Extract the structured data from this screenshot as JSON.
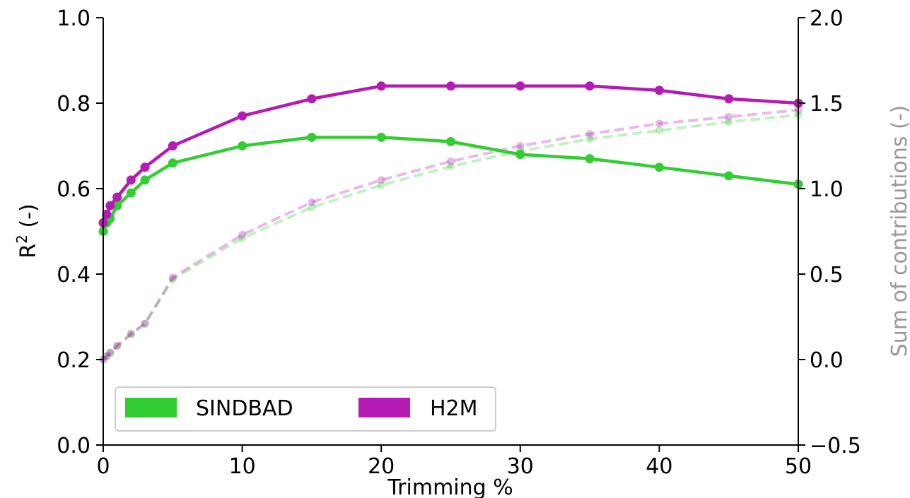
{
  "chart_data": {
    "type": "line",
    "xlabel": "Trimming %",
    "ylabel_left": "R",
    "ylabel_left_sup": "2",
    "ylabel_left_suffix": " (-)",
    "ylabel_right": "Sum of contributions (-)",
    "xlim": [
      0,
      50
    ],
    "ylim_left": [
      0,
      1
    ],
    "ylim_right": [
      -0.5,
      2.0
    ],
    "x_ticks": [
      "0",
      "10",
      "20",
      "30",
      "40",
      "50"
    ],
    "y_left_ticks": [
      "0.0",
      "0.2",
      "0.4",
      "0.6",
      "0.8",
      "1.0"
    ],
    "y_right_ticks": [
      "−0.5",
      "0.0",
      "0.5",
      "1.0",
      "1.5",
      "2.0"
    ],
    "grid": false,
    "legend_position": "bottom-left",
    "x": [
      0,
      0.25,
      0.5,
      1,
      2,
      3,
      5,
      10,
      15,
      20,
      25,
      30,
      35,
      40,
      45,
      50
    ],
    "series": [
      {
        "name": "SINDBAD",
        "color": "#32cd32",
        "axis": "left",
        "style": "solid",
        "values": [
          0.5,
          0.52,
          0.53,
          0.56,
          0.59,
          0.62,
          0.66,
          0.7,
          0.72,
          0.72,
          0.71,
          0.68,
          0.67,
          0.65,
          0.63,
          0.61
        ]
      },
      {
        "name": "H2M",
        "color": "#b31bb3",
        "axis": "left",
        "style": "solid",
        "values": [
          0.52,
          0.54,
          0.56,
          0.58,
          0.62,
          0.65,
          0.7,
          0.77,
          0.81,
          0.84,
          0.84,
          0.84,
          0.84,
          0.83,
          0.81,
          0.8
        ]
      },
      {
        "color": "#32cd32",
        "axis": "right",
        "style": "dashed",
        "values": [
          0.0,
          0.02,
          0.04,
          0.08,
          0.15,
          0.21,
          0.47,
          0.71,
          0.89,
          1.02,
          1.13,
          1.22,
          1.29,
          1.34,
          1.39,
          1.43
        ]
      },
      {
        "color": "#b31bb3",
        "axis": "right",
        "style": "dashed",
        "values": [
          0.0,
          0.02,
          0.04,
          0.08,
          0.15,
          0.21,
          0.48,
          0.73,
          0.92,
          1.05,
          1.16,
          1.25,
          1.32,
          1.38,
          1.42,
          1.46
        ]
      }
    ]
  }
}
